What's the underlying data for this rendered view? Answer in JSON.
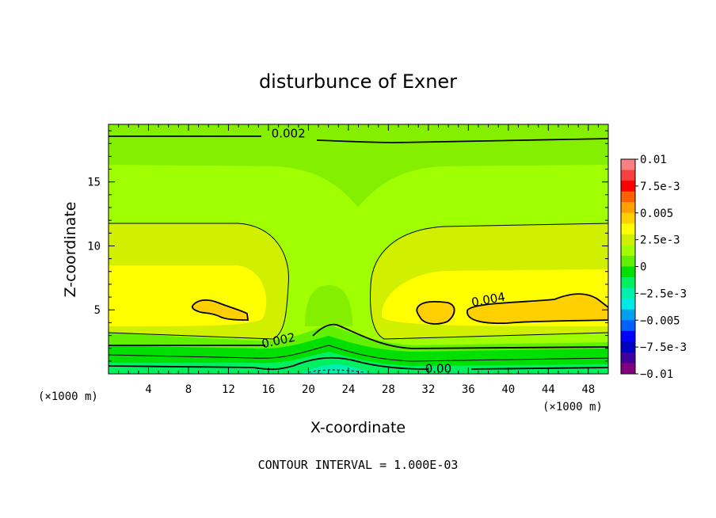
{
  "chart_data": {
    "type": "heatmap",
    "title": "disturbunce of Exner",
    "xlabel": "X-coordinate",
    "ylabel": "Z-coordinate",
    "x_unit_left": "(×1000 m)",
    "x_unit_right": "(×1000 m)",
    "footnote": "CONTOUR INTERVAL = 1.000E-03",
    "xlim": [
      0,
      50
    ],
    "ylim": [
      0,
      19.5
    ],
    "x_ticks": [
      4,
      8,
      12,
      16,
      20,
      24,
      28,
      32,
      36,
      40,
      44,
      48
    ],
    "y_ticks": [
      5,
      10,
      15
    ],
    "contour_interval": 0.001,
    "contour_labels": [
      {
        "text": "0.002",
        "x": 18,
        "z": 18.8
      },
      {
        "text": "0.004",
        "x": 38,
        "z": 5.8
      },
      {
        "text": "0.002",
        "x": 17,
        "z": 2.6
      },
      {
        "text": "0.00",
        "x": 33,
        "z": 0.4
      }
    ],
    "colorbar": {
      "tick_labels": [
        "0.01",
        "7.5e-3",
        "0.005",
        "2.5e-3",
        "0",
        "−2.5e-3",
        "−0.005",
        "−7.5e-3",
        "−0.01"
      ],
      "levels": [
        0.01,
        0.0075,
        0.005,
        0.0025,
        0,
        -0.0025,
        -0.005,
        -0.0075,
        -0.01
      ],
      "colors": [
        "#f88080",
        "#f84040",
        "#ff0000",
        "#ff6000",
        "#ffa000",
        "#ffd000",
        "#ffff00",
        "#d0f000",
        "#a0ff00",
        "#60f000",
        "#00e000",
        "#00f060",
        "#00f0b0",
        "#00e8e8",
        "#00a0f0",
        "#0060ff",
        "#0000ff",
        "#0000c0",
        "#4000a0",
        "#800080"
      ]
    },
    "fields": {
      "background_color": "#a0ff00",
      "upper_band_color": "#84f000",
      "mid_band_color": "#d0f000",
      "core_color": "#ffff00",
      "max_color": "#ffd000",
      "surface_colors": [
        "#60f000",
        "#00e000",
        "#00f060",
        "#00f0b0"
      ]
    }
  }
}
